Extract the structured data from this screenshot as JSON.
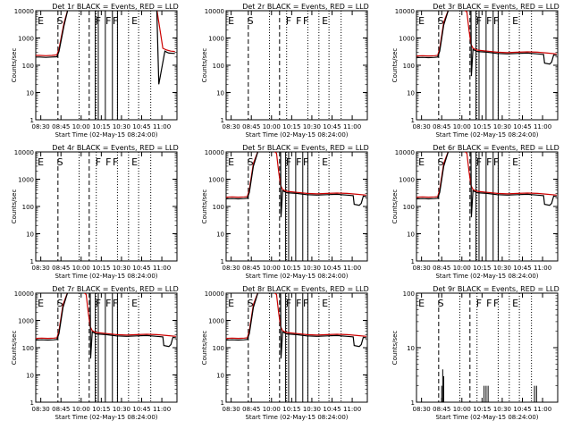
{
  "figure": {
    "xlabel": "Start Time (02-May-15 08:24:00)",
    "ylabel": "Counts/sec",
    "x_tick_labels": [
      "08:30",
      "08:45",
      "10:00",
      "10:15",
      "10:30",
      "10:45",
      "11:00"
    ],
    "y_tick_labels": [
      "1",
      "10",
      "100",
      "1000",
      "10000"
    ]
  },
  "chart_data": [
    {
      "type": "line",
      "title": "Det 1r BLACK = Events, RED = LLD",
      "y_scale": "log",
      "ylim": [
        1,
        10000
      ],
      "xlim": [
        0,
        7
      ],
      "has_events": true,
      "has_lld": true,
      "series": [
        {
          "name": "Events",
          "color": "#000000",
          "x": [
            0,
            0.2,
            0.5,
            0.8,
            1.05,
            1.15,
            1.4,
            1.6,
            2.0,
            2.3,
            2.8,
            3.3,
            3.8,
            4.3,
            4.8,
            5.3,
            5.8,
            6.0,
            6.1,
            6.4,
            6.5,
            6.6,
            6.9
          ],
          "y": [
            200,
            200,
            195,
            200,
            205,
            320,
            2800,
            15000,
            15000,
            15000,
            15000,
            15000,
            15000,
            15000,
            15000,
            15000,
            15000,
            15000,
            20,
            330,
            300,
            280,
            270
          ]
        },
        {
          "name": "LLD",
          "color": "#cc0000",
          "x": [
            0,
            0.2,
            0.5,
            0.8,
            1.05,
            1.15,
            1.4,
            1.6,
            2.0,
            2.3,
            2.8,
            3.3,
            3.8,
            4.3,
            4.8,
            5.3,
            5.8,
            6.0,
            6.3,
            6.5,
            6.7,
            6.9
          ],
          "y": [
            230,
            230,
            225,
            230,
            240,
            400,
            3500,
            15000,
            15000,
            15000,
            15000,
            15000,
            15000,
            15000,
            15000,
            15000,
            15000,
            15000,
            420,
            360,
            330,
            320
          ]
        }
      ],
      "dashed_markers": [
        1.1,
        2.65
      ],
      "solid_markers": [
        2.95,
        3.1,
        3.45,
        3.8,
        4.05
      ],
      "dotted_markers": [
        2.15,
        3.0,
        4.05,
        4.6,
        5.1,
        5.7
      ],
      "annotations": [
        {
          "label": "E",
          "x": 0.25
        },
        {
          "label": "S",
          "x": 1.2
        },
        {
          "label": "F",
          "x": 3.1
        },
        {
          "label": "F",
          "x": 3.6
        },
        {
          "label": "F",
          "x": 3.95
        },
        {
          "label": "E",
          "x": 4.9
        }
      ]
    },
    {
      "type": "line",
      "title": "Det 2r BLACK = Events, RED = LLD",
      "y_scale": "log",
      "ylim": [
        1,
        10000
      ],
      "xlim": [
        0,
        7
      ],
      "has_events": false,
      "has_lld": false,
      "series": [],
      "dashed_markers": [
        1.1,
        2.65
      ],
      "solid_markers": [],
      "dotted_markers": [
        2.15,
        3.0,
        4.05,
        4.6,
        5.1,
        5.7
      ],
      "annotations": [
        {
          "label": "E",
          "x": 0.25
        },
        {
          "label": "S",
          "x": 1.2
        },
        {
          "label": "F",
          "x": 3.1
        },
        {
          "label": "F",
          "x": 3.6
        },
        {
          "label": "F",
          "x": 3.95
        },
        {
          "label": "E",
          "x": 4.9
        }
      ]
    },
    {
      "type": "line",
      "title": "Det 3r BLACK = Events, RED = LLD",
      "y_scale": "log",
      "ylim": [
        1,
        10000
      ],
      "xlim": [
        0,
        7
      ],
      "has_events": true,
      "has_lld": true,
      "series": [],
      "dashed_markers": [
        1.1,
        2.65
      ],
      "solid_markers": [
        2.95,
        3.1,
        3.45,
        3.8,
        4.05
      ],
      "dotted_markers": [
        2.15,
        3.0,
        4.05,
        4.6,
        5.1,
        5.7
      ],
      "annotations": [
        {
          "label": "E",
          "x": 0.25
        },
        {
          "label": "S",
          "x": 1.2
        },
        {
          "label": "F",
          "x": 3.1
        },
        {
          "label": "F",
          "x": 3.6
        },
        {
          "label": "F",
          "x": 3.95
        },
        {
          "label": "E",
          "x": 4.9
        }
      ]
    },
    {
      "type": "line",
      "title": "Det 4r BLACK = Events, RED = LLD",
      "y_scale": "log",
      "ylim": [
        1,
        10000
      ],
      "xlim": [
        0,
        7
      ],
      "has_events": false,
      "has_lld": false,
      "series": [],
      "dashed_markers": [
        1.1,
        2.65
      ],
      "solid_markers": [],
      "dotted_markers": [
        2.15,
        3.0,
        4.05,
        4.6,
        5.1,
        5.7
      ],
      "annotations": [
        {
          "label": "E",
          "x": 0.25
        },
        {
          "label": "S",
          "x": 1.2
        },
        {
          "label": "F",
          "x": 3.1
        },
        {
          "label": "F",
          "x": 3.6
        },
        {
          "label": "F",
          "x": 3.95
        },
        {
          "label": "E",
          "x": 4.9
        }
      ]
    },
    {
      "type": "line",
      "title": "Det 5r BLACK = Events, RED = LLD",
      "y_scale": "log",
      "ylim": [
        1,
        10000
      ],
      "xlim": [
        0,
        7
      ],
      "has_events": true,
      "has_lld": true,
      "series": [],
      "dashed_markers": [
        1.1,
        2.65
      ],
      "solid_markers": [
        2.95,
        3.1,
        3.45,
        3.8,
        4.05
      ],
      "dotted_markers": [
        2.15,
        3.0,
        4.05,
        4.6,
        5.1,
        5.7
      ],
      "annotations": [
        {
          "label": "E",
          "x": 0.25
        },
        {
          "label": "S",
          "x": 1.2
        },
        {
          "label": "F",
          "x": 3.1
        },
        {
          "label": "F",
          "x": 3.6
        },
        {
          "label": "F",
          "x": 3.95
        },
        {
          "label": "E",
          "x": 4.9
        }
      ]
    },
    {
      "type": "line",
      "title": "Det 6r BLACK = Events, RED = LLD",
      "y_scale": "log",
      "ylim": [
        1,
        10000
      ],
      "xlim": [
        0,
        7
      ],
      "has_events": true,
      "has_lld": true,
      "series": [],
      "dashed_markers": [
        1.1,
        2.65
      ],
      "solid_markers": [
        2.95,
        3.1,
        3.45,
        3.8,
        4.05
      ],
      "dotted_markers": [
        2.15,
        3.0,
        4.05,
        4.6,
        5.1,
        5.7
      ],
      "annotations": [
        {
          "label": "E",
          "x": 0.25
        },
        {
          "label": "S",
          "x": 1.2
        },
        {
          "label": "F",
          "x": 3.1
        },
        {
          "label": "F",
          "x": 3.6
        },
        {
          "label": "F",
          "x": 3.95
        },
        {
          "label": "E",
          "x": 4.9
        }
      ]
    },
    {
      "type": "line",
      "title": "Det 7r BLACK = Events, RED = LLD",
      "y_scale": "log",
      "ylim": [
        1,
        10000
      ],
      "xlim": [
        0,
        7
      ],
      "has_events": true,
      "has_lld": true,
      "series": [],
      "dashed_markers": [
        1.1,
        2.65
      ],
      "solid_markers": [
        2.95,
        3.1,
        3.45,
        3.8,
        4.05
      ],
      "dotted_markers": [
        2.15,
        3.0,
        4.05,
        4.6,
        5.1,
        5.7
      ],
      "annotations": [
        {
          "label": "E",
          "x": 0.25
        },
        {
          "label": "S",
          "x": 1.2
        },
        {
          "label": "F",
          "x": 3.1
        },
        {
          "label": "F",
          "x": 3.6
        },
        {
          "label": "F",
          "x": 3.95
        },
        {
          "label": "E",
          "x": 4.9
        }
      ]
    },
    {
      "type": "line",
      "title": "Det 8r BLACK = Events, RED = LLD",
      "y_scale": "log",
      "ylim": [
        1,
        10000
      ],
      "xlim": [
        0,
        7
      ],
      "has_events": true,
      "has_lld": true,
      "series": [],
      "dashed_markers": [
        1.1,
        2.65
      ],
      "solid_markers": [
        2.95,
        3.1,
        3.45,
        3.8,
        4.05
      ],
      "dotted_markers": [
        2.15,
        3.0,
        4.05,
        4.6,
        5.1,
        5.7
      ],
      "annotations": [
        {
          "label": "E",
          "x": 0.25
        },
        {
          "label": "S",
          "x": 1.2
        },
        {
          "label": "F",
          "x": 3.1
        },
        {
          "label": "F",
          "x": 3.6
        },
        {
          "label": "F",
          "x": 3.95
        },
        {
          "label": "E",
          "x": 4.9
        }
      ]
    },
    {
      "type": "line",
      "title": "Det 9r BLACK = Events, RED = LLD",
      "y_scale": "log",
      "ylim": [
        1,
        100
      ],
      "xlim": [
        0,
        7
      ],
      "has_events": true,
      "has_lld": false,
      "series": [
        {
          "name": "Events",
          "color": "#000000",
          "x": [
            1.2,
            1.25,
            1.3,
            1.35,
            1.4,
            3.3,
            3.35,
            3.4,
            3.45,
            3.5,
            3.55,
            3.6,
            5.8,
            5.85,
            5.9,
            5.95,
            6.0
          ],
          "y": [
            1,
            2,
            4,
            3,
            1,
            1,
            2,
            1,
            2,
            1,
            2,
            1,
            1,
            2,
            1,
            2,
            1
          ]
        }
      ],
      "dashed_markers": [
        1.1,
        2.65
      ],
      "solid_markers": [],
      "dotted_markers": [
        2.15,
        3.0,
        4.05,
        4.6,
        5.1,
        5.7
      ],
      "annotations": [
        {
          "label": "E",
          "x": 0.25
        },
        {
          "label": "S",
          "x": 1.2
        },
        {
          "label": "F",
          "x": 3.1
        },
        {
          "label": "F",
          "x": 3.6
        },
        {
          "label": "F",
          "x": 3.95
        },
        {
          "label": "E",
          "x": 4.9
        }
      ]
    }
  ]
}
